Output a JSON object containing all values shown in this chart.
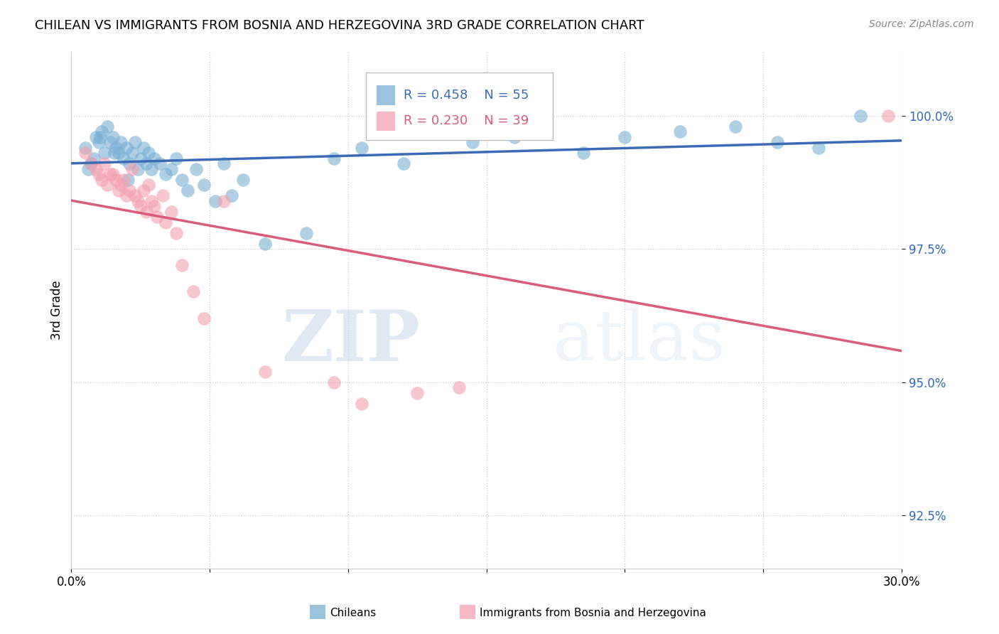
{
  "title": "CHILEAN VS IMMIGRANTS FROM BOSNIA AND HERZEGOVINA 3RD GRADE CORRELATION CHART",
  "source": "Source: ZipAtlas.com",
  "ylabel": "3rd Grade",
  "yticks": [
    92.5,
    95.0,
    97.5,
    100.0
  ],
  "ytick_labels": [
    "92.5%",
    "95.0%",
    "97.5%",
    "100.0%"
  ],
  "xmin": 0.0,
  "xmax": 30.0,
  "ymin": 91.5,
  "ymax": 101.2,
  "legend1_r": "0.458",
  "legend1_n": "55",
  "legend2_r": "0.230",
  "legend2_n": "39",
  "blue_color": "#7BAFD4",
  "pink_color": "#F4A0B0",
  "blue_line_color": "#3B6BB5",
  "pink_line_color": "#D95C7A",
  "watermark_zip": "ZIP",
  "watermark_atlas": "atlas",
  "blue_scatter_x": [
    0.5,
    0.8,
    0.9,
    1.0,
    1.1,
    1.2,
    1.3,
    1.4,
    1.5,
    1.6,
    1.7,
    1.8,
    1.9,
    2.0,
    2.1,
    2.2,
    2.3,
    2.4,
    2.5,
    2.6,
    2.7,
    2.8,
    2.9,
    3.0,
    3.2,
    3.4,
    3.6,
    3.8,
    4.0,
    4.2,
    4.5,
    4.8,
    5.2,
    5.5,
    5.8,
    6.2,
    7.0,
    8.5,
    9.5,
    10.5,
    12.0,
    14.5,
    16.0,
    18.5,
    20.0,
    22.0,
    24.0,
    25.5,
    27.0,
    28.5,
    0.6,
    0.7,
    1.05,
    1.55,
    2.05
  ],
  "blue_scatter_y": [
    99.4,
    99.2,
    99.6,
    99.5,
    99.7,
    99.3,
    99.8,
    99.5,
    99.6,
    99.4,
    99.3,
    99.5,
    99.2,
    99.4,
    99.1,
    99.3,
    99.5,
    99.0,
    99.2,
    99.4,
    99.1,
    99.3,
    99.0,
    99.2,
    99.1,
    98.9,
    99.0,
    99.2,
    98.8,
    98.6,
    99.0,
    98.7,
    98.4,
    99.1,
    98.5,
    98.8,
    97.6,
    97.8,
    99.2,
    99.4,
    99.1,
    99.5,
    99.6,
    99.3,
    99.6,
    99.7,
    99.8,
    99.5,
    99.4,
    100.0,
    99.0,
    99.1,
    99.6,
    99.3,
    98.8
  ],
  "pink_scatter_x": [
    0.5,
    0.7,
    0.9,
    1.0,
    1.1,
    1.3,
    1.5,
    1.7,
    1.9,
    2.0,
    2.2,
    2.4,
    2.6,
    2.8,
    3.0,
    3.3,
    3.6,
    4.0,
    4.4,
    4.8,
    5.5,
    7.0,
    9.5,
    10.5,
    12.5,
    14.0,
    1.2,
    1.4,
    1.6,
    1.8,
    2.1,
    2.3,
    2.5,
    2.7,
    2.9,
    3.1,
    3.4,
    3.8,
    29.5
  ],
  "pink_scatter_y": [
    99.3,
    99.1,
    99.0,
    98.9,
    98.8,
    98.7,
    98.9,
    98.6,
    98.8,
    98.5,
    99.0,
    98.4,
    98.6,
    98.7,
    98.3,
    98.5,
    98.2,
    97.2,
    96.7,
    96.2,
    98.4,
    95.2,
    95.0,
    94.6,
    94.8,
    94.9,
    99.1,
    98.9,
    98.8,
    98.7,
    98.6,
    98.5,
    98.3,
    98.2,
    98.4,
    98.1,
    98.0,
    97.8,
    100.0
  ]
}
